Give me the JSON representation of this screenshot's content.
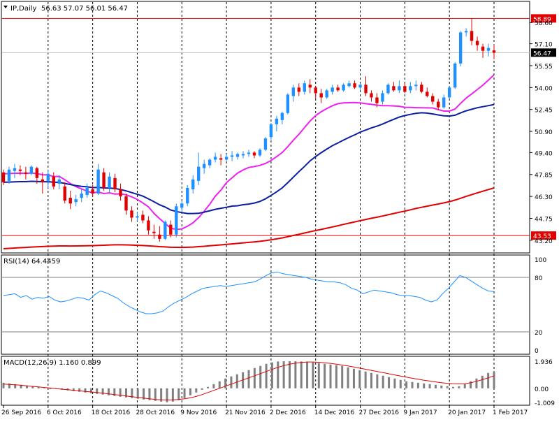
{
  "header": {
    "symbol": "IP,Daily",
    "ohlc": "56.63 57.07 56.01 56.47"
  },
  "price_panel": {
    "y_ticks": [
      "58.60",
      "57.10",
      "55.55",
      "54.00",
      "52.45",
      "50.90",
      "49.40",
      "47.85",
      "46.30",
      "44.75",
      "43.20"
    ],
    "horizontal_levels": [
      {
        "value": 58.89,
        "label": "58.89",
        "color": "#e00000"
      },
      {
        "value": 43.53,
        "label": "43.53",
        "color": "#e00000"
      }
    ],
    "current_price": {
      "value": 56.47,
      "label": "56.47"
    }
  },
  "rsi_panel": {
    "label": "RSI(14) 64.4459",
    "y_ticks": [
      "100",
      "80",
      "20",
      "0"
    ],
    "levels": [
      80,
      20
    ]
  },
  "macd_panel": {
    "label": "MACD(12,26,9) 1.160 0.899",
    "y_ticks": [
      "1.936",
      "0.00",
      "-1.009"
    ]
  },
  "x_axis": {
    "labels": [
      "26 Sep 2016",
      "6 Oct 2016",
      "18 Oct 2016",
      "28 Oct 2016",
      "9 Nov 2016",
      "21 Nov 2016",
      "2 Dec 2016",
      "14 Dec 2016",
      "27 Dec 2016",
      "9 Jan 2017",
      "20 Jan 2017",
      "1 Feb 2017"
    ]
  },
  "colors": {
    "bull": "#1e90ff",
    "bear": "#e00000",
    "ma_fast": "#ee22ee",
    "ma_mid": "#0a1ea0",
    "ma_slow": "#e00000",
    "rsi_line": "#1e90ff",
    "macd_signal": "#e00000",
    "macd_hist": "#808080",
    "grid": "#000000"
  },
  "chart_data": {
    "type": "candlestick",
    "symbol": "IP",
    "timeframe": "Daily",
    "candles": [
      [
        48.0,
        48.2,
        47.1,
        47.3
      ],
      [
        47.4,
        48.4,
        47.2,
        48.2
      ],
      [
        48.1,
        48.6,
        47.6,
        48.3
      ],
      [
        48.2,
        48.5,
        47.8,
        48.1
      ],
      [
        48.0,
        48.4,
        47.5,
        47.9
      ],
      [
        47.9,
        48.5,
        47.8,
        48.4
      ],
      [
        48.3,
        48.4,
        47.2,
        47.6
      ],
      [
        47.5,
        48.0,
        46.5,
        47.3
      ],
      [
        47.4,
        48.2,
        46.9,
        47.9
      ],
      [
        47.7,
        48.0,
        46.8,
        47.0
      ],
      [
        47.2,
        47.8,
        46.8,
        47.5
      ],
      [
        47.0,
        47.3,
        45.8,
        46.0
      ],
      [
        46.2,
        46.7,
        45.4,
        45.8
      ],
      [
        45.9,
        46.4,
        45.6,
        46.1
      ],
      [
        46.2,
        46.8,
        45.9,
        46.5
      ],
      [
        46.4,
        47.2,
        46.2,
        46.9
      ],
      [
        46.8,
        47.1,
        46.3,
        46.5
      ],
      [
        46.5,
        48.6,
        46.4,
        48.2
      ],
      [
        48.0,
        48.3,
        46.7,
        46.9
      ],
      [
        46.9,
        48.0,
        46.5,
        47.7
      ],
      [
        47.6,
        47.9,
        46.6,
        46.8
      ],
      [
        46.8,
        47.2,
        46.0,
        46.3
      ],
      [
        46.3,
        46.5,
        45.0,
        45.3
      ],
      [
        45.3,
        45.6,
        44.5,
        44.8
      ],
      [
        44.8,
        45.2,
        44.5,
        44.9
      ],
      [
        45.0,
        45.3,
        44.4,
        44.6
      ],
      [
        44.6,
        44.9,
        43.6,
        43.9
      ],
      [
        43.8,
        44.3,
        43.3,
        43.7
      ],
      [
        43.6,
        44.2,
        43.1,
        43.3
      ],
      [
        43.3,
        44.6,
        43.2,
        44.5
      ],
      [
        44.3,
        44.6,
        43.4,
        43.6
      ],
      [
        43.6,
        45.8,
        43.4,
        45.6
      ],
      [
        45.5,
        46.0,
        45.2,
        45.8
      ],
      [
        45.8,
        47.1,
        45.6,
        46.9
      ],
      [
        46.8,
        47.8,
        46.5,
        47.5
      ],
      [
        47.4,
        49.4,
        47.1,
        48.4
      ],
      [
        48.3,
        48.9,
        47.9,
        48.6
      ],
      [
        48.5,
        49.0,
        48.3,
        48.9
      ],
      [
        48.9,
        49.4,
        48.7,
        49.1
      ],
      [
        49.0,
        49.3,
        48.5,
        48.9
      ],
      [
        48.9,
        49.3,
        48.8,
        49.1
      ],
      [
        49.1,
        49.5,
        48.8,
        49.2
      ],
      [
        49.1,
        49.4,
        48.9,
        49.3
      ],
      [
        49.2,
        49.5,
        49.0,
        49.3
      ],
      [
        49.3,
        49.6,
        49.1,
        49.4
      ],
      [
        49.4,
        49.5,
        49.0,
        49.2
      ],
      [
        49.2,
        49.7,
        49.1,
        49.6
      ],
      [
        49.6,
        50.5,
        49.5,
        50.4
      ],
      [
        50.5,
        51.5,
        50.3,
        51.4
      ],
      [
        51.4,
        52.0,
        50.9,
        51.8
      ],
      [
        51.7,
        52.3,
        51.4,
        52.2
      ],
      [
        52.2,
        53.6,
        52.1,
        53.5
      ],
      [
        53.4,
        54.2,
        53.0,
        54.0
      ],
      [
        54.0,
        54.3,
        53.4,
        53.7
      ],
      [
        53.7,
        54.5,
        53.5,
        54.3
      ],
      [
        54.2,
        54.6,
        53.6,
        54.0
      ],
      [
        54.0,
        54.1,
        53.2,
        53.6
      ],
      [
        53.6,
        53.9,
        52.9,
        53.3
      ],
      [
        53.3,
        53.9,
        53.2,
        53.8
      ],
      [
        53.7,
        54.2,
        53.5,
        54.0
      ],
      [
        54.0,
        54.2,
        53.7,
        53.8
      ],
      [
        53.8,
        54.3,
        53.7,
        54.2
      ],
      [
        54.1,
        54.5,
        54.0,
        54.3
      ],
      [
        54.3,
        54.5,
        53.9,
        54.0
      ],
      [
        54.0,
        54.3,
        53.8,
        54.2
      ],
      [
        54.2,
        54.8,
        53.4,
        53.6
      ],
      [
        53.6,
        53.8,
        53.0,
        53.3
      ],
      [
        53.3,
        53.6,
        52.6,
        52.9
      ],
      [
        53.0,
        53.8,
        52.8,
        53.6
      ],
      [
        53.6,
        54.3,
        53.5,
        54.2
      ],
      [
        54.1,
        54.4,
        53.7,
        53.8
      ],
      [
        53.8,
        54.5,
        53.6,
        54.1
      ],
      [
        54.1,
        54.3,
        53.6,
        53.7
      ],
      [
        53.8,
        54.4,
        53.6,
        54.1
      ],
      [
        54.1,
        54.5,
        53.8,
        54.2
      ],
      [
        54.2,
        54.4,
        53.6,
        53.7
      ],
      [
        53.7,
        54.0,
        53.3,
        53.4
      ],
      [
        53.4,
        53.6,
        52.8,
        53.0
      ],
      [
        53.0,
        53.2,
        52.4,
        52.6
      ],
      [
        52.6,
        53.5,
        52.5,
        53.3
      ],
      [
        53.3,
        54.1,
        53.2,
        54.0
      ],
      [
        54.0,
        55.8,
        53.9,
        55.7
      ],
      [
        55.7,
        58.0,
        55.5,
        57.9
      ],
      [
        57.9,
        58.2,
        57.6,
        58.0
      ],
      [
        58.0,
        58.89,
        57.0,
        57.3
      ],
      [
        57.3,
        57.6,
        56.6,
        57.0
      ],
      [
        56.9,
        57.1,
        56.1,
        56.6
      ],
      [
        56.6,
        57.1,
        56.2,
        56.8
      ],
      [
        56.63,
        57.07,
        56.01,
        56.47
      ]
    ],
    "moving_averages": [
      {
        "color": "#ee22ee",
        "start": 47.9,
        "end": 54.9
      },
      {
        "color": "#0a1ea0",
        "start": 47.3,
        "end": 52.8
      },
      {
        "color": "#e00000",
        "start": 42.6,
        "end": 46.9
      }
    ],
    "price_range": [
      42.5,
      59.6
    ],
    "rsi": {
      "period": 14,
      "current": 64.4459,
      "values": [
        60,
        61,
        62,
        58,
        60,
        56,
        58,
        57,
        59,
        55,
        53,
        54,
        56,
        58,
        57,
        55,
        61,
        65,
        63,
        60,
        57,
        52,
        48,
        45,
        42,
        40,
        40,
        41,
        43,
        48,
        52,
        55,
        58,
        62,
        65,
        68,
        69,
        70,
        71,
        70,
        71,
        72,
        73,
        74,
        75,
        78,
        82,
        85,
        86,
        84,
        83,
        82,
        81,
        80,
        78,
        77,
        76,
        75,
        75,
        74,
        72,
        68,
        66,
        62,
        64,
        66,
        65,
        64,
        63,
        61,
        60,
        60,
        59,
        58,
        55,
        53,
        55,
        62,
        68,
        75,
        82,
        80,
        76,
        72,
        68,
        65,
        64.4
      ]
    },
    "macd": {
      "params": [
        12,
        26,
        9
      ],
      "main": 1.16,
      "signal": 0.899,
      "histogram": [
        0.4,
        0.35,
        0.3,
        0.25,
        0.2,
        0.15,
        0.1,
        0.05,
        0.0,
        -0.05,
        -0.1,
        -0.15,
        -0.2,
        -0.25,
        -0.3,
        -0.35,
        -0.4,
        -0.45,
        -0.5,
        -0.55,
        -0.6,
        -0.65,
        -0.7,
        -0.75,
        -0.8,
        -0.85,
        -0.9,
        -0.95,
        -1.0,
        -0.95,
        -0.85,
        -0.7,
        -0.5,
        -0.3,
        -0.1,
        0.1,
        0.3,
        0.5,
        0.7,
        0.85,
        1.0,
        1.15,
        1.3,
        1.45,
        1.6,
        1.75,
        1.85,
        1.92,
        1.93,
        1.93,
        1.93,
        1.92,
        1.9,
        1.85,
        1.8,
        1.75,
        1.7,
        1.65,
        1.6,
        1.5,
        1.4,
        1.3,
        1.2,
        1.1,
        1.0,
        0.9,
        0.8,
        0.7,
        0.6,
        0.5,
        0.45,
        0.4,
        0.35,
        0.3,
        0.25,
        0.2,
        0.15,
        0.1,
        0.15,
        0.3,
        0.5,
        0.7,
        0.9,
        1.1,
        1.16
      ],
      "signal_line": [
        0.3,
        0.28,
        0.25,
        0.22,
        0.18,
        0.14,
        0.1,
        0.06,
        0.02,
        -0.02,
        -0.06,
        -0.1,
        -0.14,
        -0.18,
        -0.22,
        -0.26,
        -0.3,
        -0.35,
        -0.4,
        -0.45,
        -0.5,
        -0.55,
        -0.6,
        -0.65,
        -0.7,
        -0.75,
        -0.8,
        -0.82,
        -0.83,
        -0.82,
        -0.8,
        -0.75,
        -0.68,
        -0.58,
        -0.45,
        -0.3,
        -0.15,
        0.0,
        0.15,
        0.3,
        0.45,
        0.6,
        0.75,
        0.9,
        1.05,
        1.2,
        1.35,
        1.5,
        1.62,
        1.72,
        1.8,
        1.85,
        1.88,
        1.88,
        1.86,
        1.82,
        1.78,
        1.72,
        1.66,
        1.6,
        1.52,
        1.44,
        1.36,
        1.28,
        1.2,
        1.12,
        1.04,
        0.96,
        0.88,
        0.8,
        0.72,
        0.65,
        0.58,
        0.52,
        0.46,
        0.4,
        0.36,
        0.33,
        0.32,
        0.33,
        0.4,
        0.5,
        0.62,
        0.75,
        0.899
      ]
    }
  }
}
